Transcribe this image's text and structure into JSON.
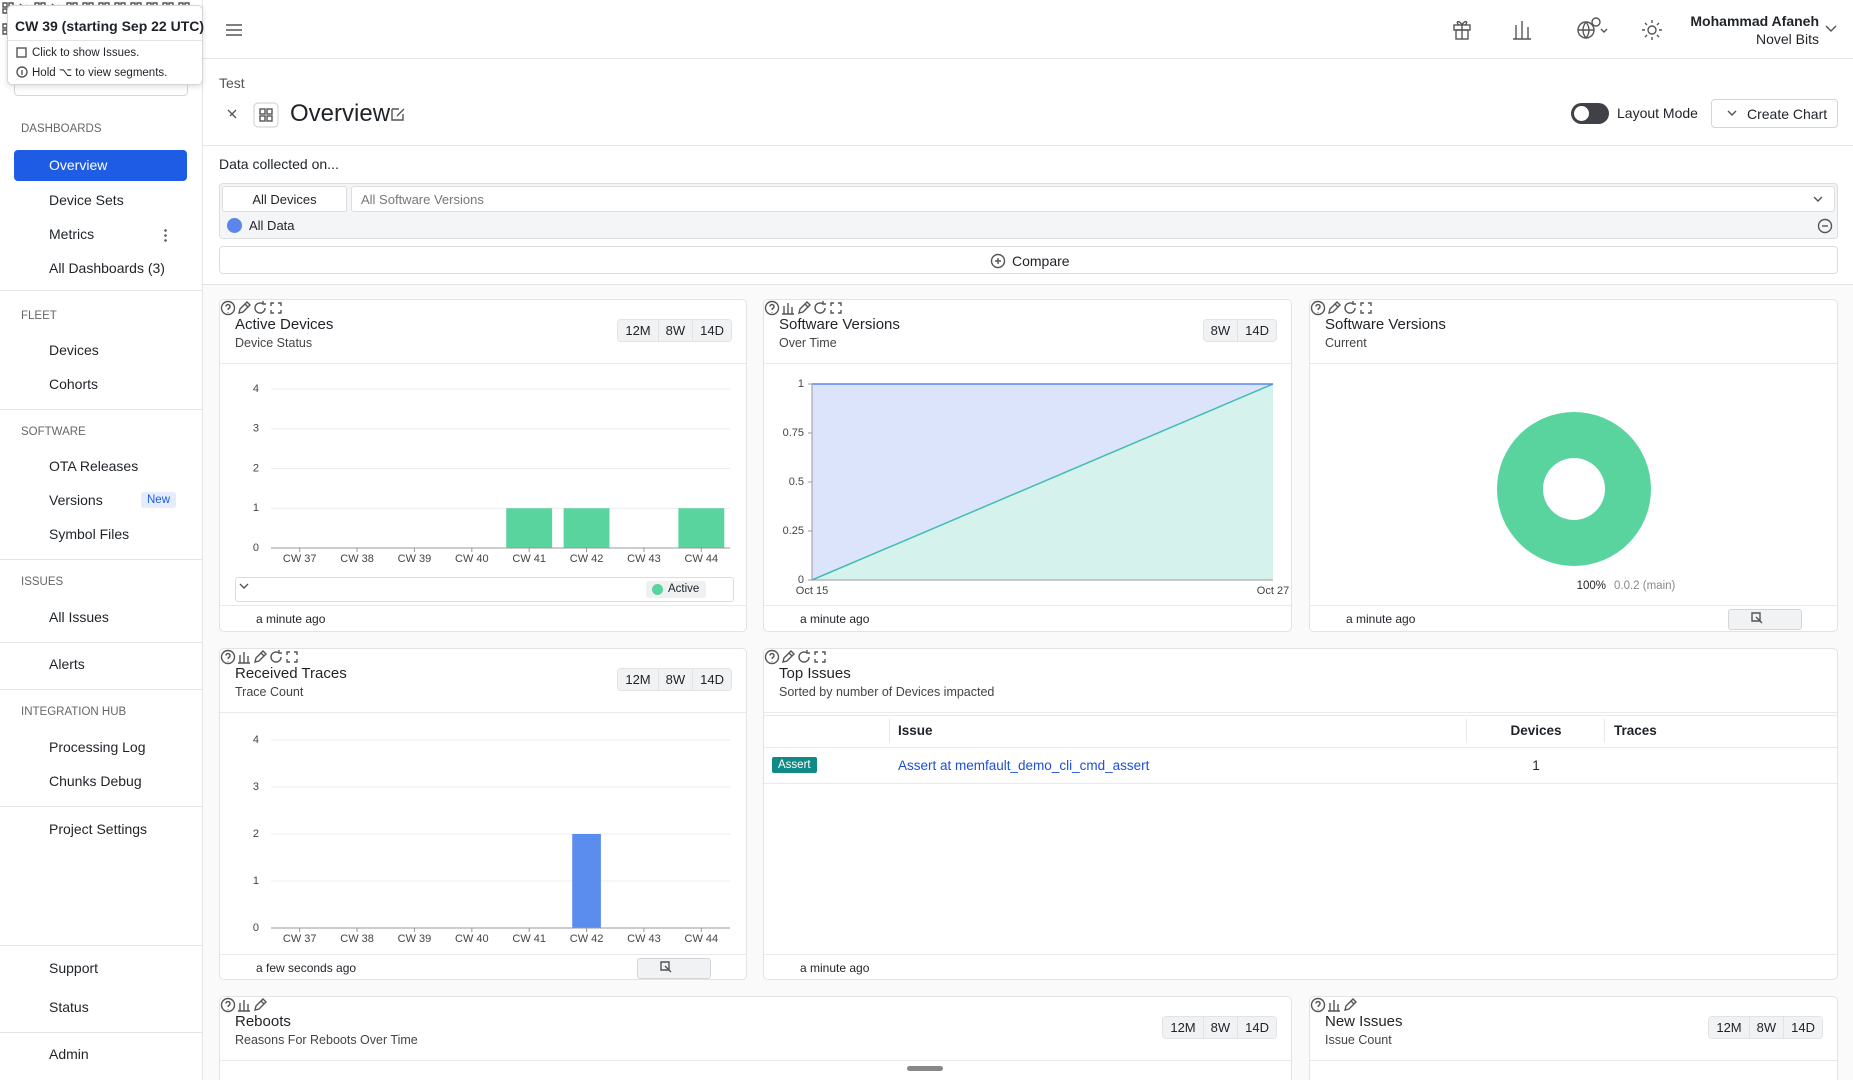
{
  "tooltip": {
    "title": "CW 39 (starting Sep 22 UTC)",
    "lines": [
      "Click to show Issues.",
      "Hold ⌥ to view segments."
    ]
  },
  "sidebar": {
    "groups": [
      {
        "title": "DASHBOARDS",
        "items": [
          "Overview",
          "Device Sets",
          "Metrics",
          "All Dashboards (3)"
        ]
      },
      {
        "title": "FLEET",
        "items": [
          "Devices",
          "Cohorts"
        ]
      },
      {
        "title": "SOFTWARE",
        "items": [
          "OTA Releases",
          "Versions",
          "Symbol Files"
        ]
      },
      {
        "title": "ISSUES",
        "items": [
          "All Issues"
        ]
      },
      {
        "items": [
          "Alerts"
        ]
      },
      {
        "title": "INTEGRATION HUB",
        "items": [
          "Processing Log",
          "Chunks Debug"
        ]
      },
      {
        "items": [
          "Project Settings"
        ]
      }
    ],
    "badge": "New",
    "footer": [
      "Support",
      "Status",
      "Admin"
    ]
  },
  "header": {
    "user": "Mohammad Afaneh",
    "org": "Novel Bits"
  },
  "page": {
    "breadcrumb": "Test",
    "title": "Overview",
    "layout_mode": "Layout Mode",
    "create": "Create Chart"
  },
  "filters": {
    "label": "Data collected on...",
    "devices": "All Devices",
    "versions": "All Software Versions",
    "segment": "All Data",
    "compare": "Compare"
  },
  "widgets": [
    {
      "title": "Active Devices",
      "subtitle": "Device Status",
      "ranges": [
        "12M",
        "8W",
        "14D"
      ],
      "updated": "a minute ago",
      "chart": {
        "type": "bar",
        "categories": [
          "CW 37",
          "CW 38",
          "CW 39",
          "CW 40",
          "CW 41",
          "CW 42",
          "CW 43",
          "CW 44"
        ],
        "series": [
          {
            "name": "Active",
            "color": "#5ad49f",
            "values": [
              0,
              0,
              0,
              0,
              1,
              1,
              0,
              1
            ]
          }
        ],
        "ylim": [
          0,
          4
        ],
        "yticks": [
          0,
          1,
          2,
          3,
          4
        ],
        "grid": true
      }
    },
    {
      "title": "Software Versions",
      "subtitle": "Over Time",
      "ranges": [
        "8W",
        "14D"
      ],
      "updated": "a minute ago",
      "chart": {
        "type": "area",
        "stacked": true,
        "categories": [
          "Oct 15",
          "Oct 27"
        ],
        "series": [
          {
            "color": "#3fc4aa",
            "values": [
              0,
              1
            ]
          },
          {
            "color": "#5b86ee",
            "values": [
              1,
              0
            ]
          }
        ],
        "ylim": [
          0,
          1
        ],
        "yticks": [
          0,
          0.25,
          0.5,
          0.75,
          1
        ]
      }
    },
    {
      "title": "Software Versions",
      "subtitle": "Current",
      "updated": "a minute ago",
      "action": "Drilldown",
      "chart": {
        "type": "donut",
        "labels": [
          "0.0.2 (main)"
        ],
        "values": [
          100
        ],
        "value_labels": [
          "100%"
        ],
        "colors": [
          "#5ad49f"
        ]
      }
    },
    {
      "title": "Received Traces",
      "subtitle": "Trace Count",
      "ranges": [
        "12M",
        "8W",
        "14D"
      ],
      "updated": "a few seconds ago",
      "action": "Drilldown",
      "chart": {
        "type": "bar",
        "categories": [
          "CW 37",
          "CW 38",
          "CW 39",
          "CW 40",
          "CW 41",
          "CW 42",
          "CW 43",
          "CW 44"
        ],
        "series": [
          {
            "color": "#5b8def",
            "values": [
              0,
              0,
              0,
              0,
              0,
              2,
              0,
              0
            ]
          }
        ],
        "ylim": [
          0,
          4
        ],
        "yticks": [
          0,
          1,
          2,
          3,
          4
        ],
        "grid": true
      }
    },
    {
      "title": "Top Issues",
      "subtitle": "Sorted by number of Devices impacted",
      "updated": "a minute ago",
      "table": {
        "columns": [
          "Issue",
          "Devices",
          "Traces"
        ],
        "rows": [
          {
            "tag": "Assert",
            "issue": "Assert at memfault_demo_cli_cmd_assert",
            "devices": 1
          }
        ]
      }
    },
    {
      "title": "Reboots",
      "subtitle": "Reasons For Reboots Over Time",
      "ranges": [
        "12M",
        "8W",
        "14D"
      ]
    },
    {
      "title": "New Issues",
      "subtitle": "Issue Count",
      "ranges": [
        "12M",
        "8W",
        "14D"
      ]
    }
  ]
}
